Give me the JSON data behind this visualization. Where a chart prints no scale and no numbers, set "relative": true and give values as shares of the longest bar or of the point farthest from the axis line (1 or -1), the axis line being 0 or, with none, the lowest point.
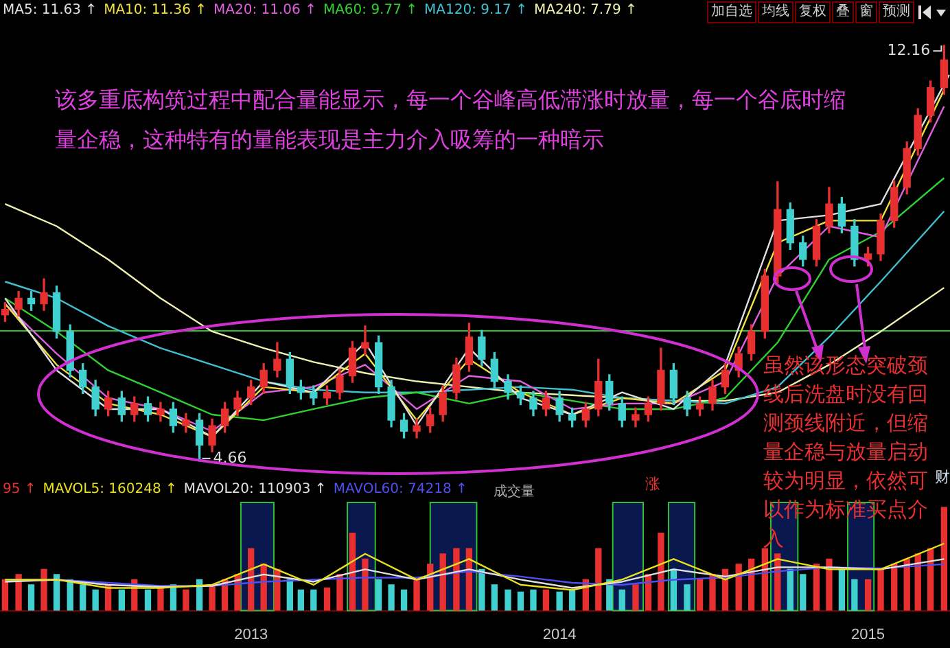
{
  "chart_data": [
    {
      "type": "candlestick",
      "x": [
        "2012-03-16",
        "2012-04-01",
        "2012-04-16",
        "2012-05-01",
        "2012-05-16",
        "2012-06-01",
        "2012-06-16",
        "2012-07-01",
        "2012-07-16",
        "2012-08-01",
        "2012-08-16",
        "2012-09-01",
        "2012-09-16",
        "2012-10-01",
        "2012-10-16",
        "2012-11-01",
        "2012-11-16",
        "2012-12-01",
        "2012-12-16",
        "2013-01-01",
        "2013-01-16",
        "2013-02-01",
        "2013-02-16",
        "2013-03-01",
        "2013-03-16",
        "2013-04-01",
        "2013-04-16",
        "2013-05-01",
        "2013-05-16",
        "2013-06-01",
        "2013-06-16",
        "2013-07-01",
        "2013-07-16",
        "2013-08-01",
        "2013-08-16",
        "2013-09-01",
        "2013-09-16",
        "2013-10-01",
        "2013-10-16",
        "2013-11-01",
        "2013-11-16",
        "2013-12-01",
        "2013-12-16",
        "2014-01-01",
        "2014-01-16",
        "2014-02-01",
        "2014-02-16",
        "2014-03-01",
        "2014-03-16",
        "2014-04-01",
        "2014-04-16",
        "2014-05-01",
        "2014-05-16",
        "2014-06-01",
        "2014-06-16",
        "2014-07-01",
        "2014-07-16",
        "2014-08-01",
        "2014-08-16",
        "2014-09-01",
        "2014-09-16",
        "2014-10-01",
        "2014-10-16",
        "2014-11-01",
        "2014-11-16",
        "2014-12-01",
        "2014-12-16",
        "2015-01-01",
        "2015-01-16",
        "2015-02-01",
        "2015-02-16",
        "2015-03-01",
        "2015-03-16",
        "2015-04-01"
      ],
      "ohlc": [
        [
          7.3,
          7.52,
          7.18,
          7.4
        ],
        [
          7.4,
          7.72,
          7.28,
          7.6
        ],
        [
          7.6,
          7.72,
          7.38,
          7.5
        ],
        [
          7.5,
          7.95,
          7.38,
          7.7
        ],
        [
          7.7,
          7.82,
          6.88,
          7.0
        ],
        [
          7.0,
          7.12,
          6.18,
          6.3
        ],
        [
          6.3,
          6.42,
          5.88,
          6.0
        ],
        [
          6.0,
          6.12,
          5.48,
          5.6
        ],
        [
          5.6,
          5.92,
          5.48,
          5.8
        ],
        [
          5.8,
          5.92,
          5.38,
          5.5
        ],
        [
          5.5,
          5.82,
          5.38,
          5.7
        ],
        [
          5.7,
          5.82,
          5.38,
          5.5
        ],
        [
          5.5,
          5.72,
          5.38,
          5.6
        ],
        [
          5.6,
          5.72,
          5.18,
          5.3
        ],
        [
          5.3,
          5.52,
          5.18,
          5.4
        ],
        [
          5.4,
          5.52,
          4.66,
          4.95
        ],
        [
          4.95,
          5.42,
          4.83,
          5.3
        ],
        [
          5.3,
          5.72,
          5.18,
          5.6
        ],
        [
          5.6,
          5.92,
          5.48,
          5.8
        ],
        [
          5.8,
          6.12,
          5.68,
          6.0
        ],
        [
          6.0,
          6.42,
          5.88,
          6.3
        ],
        [
          6.3,
          6.8,
          6.18,
          6.5
        ],
        [
          6.5,
          6.62,
          5.88,
          6.0
        ],
        [
          6.0,
          6.12,
          5.78,
          5.9
        ],
        [
          5.9,
          6.02,
          5.68,
          5.8
        ],
        [
          5.8,
          6.02,
          5.68,
          5.9
        ],
        [
          5.9,
          6.32,
          5.78,
          6.2
        ],
        [
          6.2,
          6.82,
          6.08,
          6.7
        ],
        [
          6.7,
          7.1,
          6.58,
          6.8
        ],
        [
          6.8,
          6.92,
          5.88,
          6.0
        ],
        [
          6.0,
          6.12,
          5.28,
          5.4
        ],
        [
          5.4,
          5.52,
          5.08,
          5.2
        ],
        [
          5.2,
          5.42,
          5.08,
          5.3
        ],
        [
          5.3,
          5.62,
          5.18,
          5.5
        ],
        [
          5.5,
          6.02,
          5.38,
          5.9
        ],
        [
          5.9,
          6.52,
          5.78,
          6.4
        ],
        [
          6.4,
          7.15,
          6.28,
          6.9
        ],
        [
          6.9,
          7.02,
          6.38,
          6.5
        ],
        [
          6.5,
          6.62,
          5.98,
          6.1
        ],
        [
          6.1,
          6.22,
          5.78,
          5.9
        ],
        [
          5.9,
          6.02,
          5.68,
          5.8
        ],
        [
          5.8,
          5.92,
          5.48,
          5.6
        ],
        [
          5.6,
          5.92,
          5.48,
          5.8
        ],
        [
          5.8,
          5.92,
          5.38,
          5.5
        ],
        [
          5.5,
          5.62,
          5.28,
          5.4
        ],
        [
          5.4,
          5.72,
          5.28,
          5.6
        ],
        [
          5.6,
          6.5,
          5.48,
          6.1
        ],
        [
          6.1,
          6.22,
          5.58,
          5.7
        ],
        [
          5.7,
          5.82,
          5.28,
          5.4
        ],
        [
          5.4,
          5.62,
          5.28,
          5.5
        ],
        [
          5.5,
          5.82,
          5.38,
          5.7
        ],
        [
          5.7,
          6.7,
          5.58,
          6.3
        ],
        [
          6.3,
          6.42,
          5.68,
          5.8
        ],
        [
          5.8,
          5.92,
          5.48,
          5.6
        ],
        [
          5.6,
          5.82,
          5.48,
          5.7
        ],
        [
          5.7,
          6.12,
          5.58,
          6.0
        ],
        [
          6.0,
          6.42,
          5.88,
          6.3
        ],
        [
          6.3,
          6.72,
          6.18,
          6.6
        ],
        [
          6.6,
          7.12,
          6.48,
          7.0
        ],
        [
          7.0,
          8.12,
          6.88,
          8.0
        ],
        [
          8.0,
          9.7,
          7.88,
          9.2
        ],
        [
          9.2,
          9.32,
          8.48,
          8.6
        ],
        [
          8.6,
          8.72,
          8.18,
          8.3
        ],
        [
          8.3,
          9.02,
          8.18,
          8.9
        ],
        [
          8.9,
          9.6,
          8.78,
          9.3
        ],
        [
          9.3,
          9.42,
          8.78,
          8.9
        ],
        [
          8.9,
          9.02,
          8.18,
          8.3
        ],
        [
          8.3,
          8.52,
          8.18,
          8.4
        ],
        [
          8.4,
          9.12,
          8.28,
          9.0
        ],
        [
          9.0,
          9.72,
          8.88,
          9.6
        ],
        [
          9.6,
          10.42,
          9.48,
          10.3
        ],
        [
          10.3,
          11.02,
          10.18,
          10.9
        ],
        [
          10.9,
          11.52,
          10.78,
          11.4
        ],
        [
          11.4,
          12.16,
          11.28,
          11.9
        ]
      ],
      "colors": [
        "#e83030",
        "#e83030",
        "#40d0d0",
        "#e83030",
        "#40d0d0",
        "#40d0d0",
        "#40d0d0",
        "#40d0d0",
        "#e83030",
        "#40d0d0",
        "#e83030",
        "#40d0d0",
        "#e83030",
        "#40d0d0",
        "#e83030",
        "#40d0d0",
        "#e83030",
        "#e83030",
        "#e83030",
        "#e83030",
        "#e83030",
        "#e83030",
        "#40d0d0",
        "#40d0d0",
        "#40d0d0",
        "#e83030",
        "#e83030",
        "#e83030",
        "#e83030",
        "#40d0d0",
        "#40d0d0",
        "#40d0d0",
        "#e83030",
        "#e83030",
        "#e83030",
        "#e83030",
        "#e83030",
        "#40d0d0",
        "#40d0d0",
        "#40d0d0",
        "#40d0d0",
        "#40d0d0",
        "#e83030",
        "#40d0d0",
        "#40d0d0",
        "#e83030",
        "#e83030",
        "#40d0d0",
        "#40d0d0",
        "#e83030",
        "#e83030",
        "#e83030",
        "#40d0d0",
        "#40d0d0",
        "#e83030",
        "#e83030",
        "#e83030",
        "#e83030",
        "#e83030",
        "#e83030",
        "#e83030",
        "#40d0d0",
        "#40d0d0",
        "#e83030",
        "#e83030",
        "#40d0d0",
        "#40d0d0",
        "#e83030",
        "#e83030",
        "#e83030",
        "#e83030",
        "#e83030",
        "#e83030",
        "#e83030"
      ],
      "series": [
        {
          "name": "MA5: 11.63 ↑",
          "type": "line",
          "color": "#e0e0e0",
          "x": [
            "2012-03-16",
            "2012-05-16",
            "2012-07-16",
            "2012-09-16",
            "2012-11-16",
            "2013-01-16",
            "2013-03-16",
            "2013-05-16",
            "2013-07-16",
            "2013-09-16",
            "2013-11-16",
            "2014-01-16",
            "2014-03-16",
            "2014-05-16",
            "2014-07-16",
            "2014-09-16",
            "2014-11-16",
            "2015-01-16",
            "2015-04-07"
          ],
          "values": [
            7.6,
            6.3,
            5.6,
            5.6,
            5.1,
            6.1,
            5.9,
            6.8,
            5.3,
            6.7,
            5.8,
            5.5,
            5.9,
            5.6,
            6.4,
            9.0,
            9.1,
            9.3,
            11.63
          ]
        },
        {
          "name": "MA10: 11.36 ↑",
          "type": "line",
          "color": "#f0e040",
          "x": [
            "2012-03-16",
            "2012-05-16",
            "2012-07-16",
            "2012-09-16",
            "2012-11-16",
            "2013-01-16",
            "2013-03-16",
            "2013-05-16",
            "2013-07-16",
            "2013-09-16",
            "2013-11-16",
            "2014-01-16",
            "2014-03-16",
            "2014-05-16",
            "2014-07-16",
            "2014-09-16",
            "2014-11-16",
            "2015-01-16",
            "2015-04-01"
          ],
          "values": [
            7.5,
            6.4,
            5.7,
            5.5,
            5.1,
            6.0,
            5.9,
            6.6,
            5.4,
            6.5,
            5.9,
            5.5,
            5.8,
            5.7,
            6.3,
            8.6,
            9.0,
            9.0,
            11.36
          ]
        },
        {
          "name": "MA20: 11.06 ↑",
          "type": "line",
          "color": "#e060e0",
          "x": [
            "2012-03-16",
            "2012-05-16",
            "2012-07-16",
            "2012-09-16",
            "2012-11-16",
            "2013-01-16",
            "2013-03-16",
            "2013-05-16",
            "2013-07-16",
            "2013-09-16",
            "2013-11-16",
            "2014-01-16",
            "2014-03-16",
            "2014-05-16",
            "2014-07-16",
            "2014-09-16",
            "2014-11-16",
            "2015-01-16",
            "2015-04-01"
          ],
          "values": [
            7.5,
            6.6,
            5.8,
            5.6,
            5.2,
            5.9,
            6.0,
            6.4,
            5.6,
            6.2,
            6.1,
            5.6,
            5.7,
            5.7,
            6.1,
            8.0,
            8.9,
            8.7,
            11.06
          ]
        },
        {
          "name": "MA60: 9.77 ↑",
          "type": "line",
          "color": "#30d030",
          "x": [
            "2012-03-16",
            "2012-05-16",
            "2012-07-16",
            "2012-09-16",
            "2012-11-16",
            "2013-01-16",
            "2013-03-16",
            "2013-05-16",
            "2013-07-16",
            "2013-09-16",
            "2013-11-16",
            "2014-01-16",
            "2014-03-16",
            "2014-05-16",
            "2014-07-16",
            "2014-09-16",
            "2014-11-16",
            "2015-01-16",
            "2015-04-01"
          ],
          "values": [
            7.6,
            7.0,
            6.3,
            5.9,
            5.5,
            5.4,
            5.6,
            5.8,
            5.9,
            5.7,
            5.9,
            5.75,
            5.6,
            5.6,
            5.8,
            6.8,
            8.3,
            8.8,
            9.77
          ]
        },
        {
          "name": "MA120: 9.17 ↑",
          "type": "line",
          "color": "#40c0d0",
          "x": [
            "2012-03-16",
            "2012-05-16",
            "2012-07-16",
            "2012-09-16",
            "2012-11-16",
            "2013-01-16",
            "2013-03-16",
            "2013-05-16",
            "2013-07-16",
            "2013-09-16",
            "2013-11-16",
            "2014-01-16",
            "2014-03-16",
            "2014-05-16",
            "2014-07-16",
            "2014-09-16",
            "2014-11-16",
            "2015-01-16",
            "2015-04-01"
          ],
          "values": [
            7.9,
            7.6,
            7.1,
            6.7,
            6.4,
            6.1,
            5.95,
            5.9,
            5.9,
            5.95,
            6.0,
            5.95,
            5.8,
            5.75,
            5.7,
            6.0,
            6.9,
            7.9,
            9.17
          ]
        },
        {
          "name": "MA240: 7.79 ↑",
          "type": "line",
          "color": "#f0f0b0",
          "x": [
            "2012-03-16",
            "2012-05-16",
            "2012-07-16",
            "2012-09-16",
            "2012-11-16",
            "2013-01-16",
            "2013-03-16",
            "2013-05-16",
            "2013-07-16",
            "2013-09-16",
            "2013-11-16",
            "2014-01-16",
            "2014-03-16",
            "2014-05-16",
            "2014-07-16",
            "2014-09-16",
            "2014-11-16",
            "2015-01-16",
            "2015-04-01"
          ],
          "values": [
            9.3,
            8.9,
            8.3,
            7.6,
            7.0,
            6.7,
            6.45,
            6.25,
            6.1,
            6.0,
            5.9,
            5.85,
            5.8,
            5.75,
            5.75,
            5.9,
            6.4,
            7.0,
            7.79
          ]
        }
      ],
      "ref_lines": [
        {
          "axis": "y",
          "value": 7.01,
          "color": "#30c030"
        }
      ],
      "xlim": [
        "2012-03-10",
        "2015-04-08"
      ],
      "tick_labels": false,
      "legend": "top left",
      "marker": "none",
      "annotations": [
        "该多重底构筑过程中配合量能显示，每一个谷峰高低滞涨时放量，每一个谷底时缩量企稳，这种特有的量能表现是主力介入吸筹的一种暗示",
        "虽然该形态突破颈线后洗盘时没有回测颈线附近，但缩量企稳与放量启动较为明显，依然可以作为标准买点介入",
        "加自选",
        "均线",
        "复权",
        "叠",
        "窗",
        "预测",
        {
          "text": "12.16",
          "x": "2015-04-01",
          "y": 12.16
        },
        {
          "text": "4.66",
          "x": "2012-11-01",
          "y": 4.66
        }
      ]
    },
    {
      "type": "bar",
      "relative": true,
      "x": [
        "2012-03-16",
        "2012-04-01",
        "2012-04-16",
        "2012-05-01",
        "2012-05-16",
        "2012-06-01",
        "2012-06-16",
        "2012-07-01",
        "2012-07-16",
        "2012-08-01",
        "2012-08-16",
        "2012-09-01",
        "2012-09-16",
        "2012-10-01",
        "2012-10-16",
        "2012-11-01",
        "2012-11-16",
        "2012-12-01",
        "2012-12-16",
        "2013-01-01",
        "2013-01-16",
        "2013-02-01",
        "2013-02-16",
        "2013-03-01",
        "2013-03-16",
        "2013-04-01",
        "2013-04-16",
        "2013-05-01",
        "2013-05-16",
        "2013-06-01",
        "2013-06-16",
        "2013-07-01",
        "2013-07-16",
        "2013-08-01",
        "2013-08-16",
        "2013-09-01",
        "2013-09-16",
        "2013-10-01",
        "2013-10-16",
        "2013-11-01",
        "2013-11-16",
        "2013-12-01",
        "2013-12-16",
        "2014-01-01",
        "2014-01-16",
        "2014-02-01",
        "2014-02-16",
        "2014-03-01",
        "2014-03-16",
        "2014-04-01",
        "2014-04-16",
        "2014-05-01",
        "2014-05-16",
        "2014-06-01",
        "2014-06-16",
        "2014-07-01",
        "2014-07-16",
        "2014-08-01",
        "2014-08-16",
        "2014-09-01",
        "2014-09-16",
        "2014-10-01",
        "2014-10-16",
        "2014-11-01",
        "2014-11-16",
        "2014-12-01",
        "2014-12-16",
        "2015-01-01",
        "2015-01-16",
        "2015-02-01",
        "2015-02-16",
        "2015-03-01",
        "2015-03-16",
        "2015-04-01"
      ],
      "series": [
        {
          "type": "bar",
          "colors": [
            "#e83030",
            "#e83030",
            "#40d0d0",
            "#e83030",
            "#40d0d0",
            "#40d0d0",
            "#40d0d0",
            "#40d0d0",
            "#e83030",
            "#40d0d0",
            "#e83030",
            "#40d0d0",
            "#e83030",
            "#40d0d0",
            "#e83030",
            "#40d0d0",
            "#e83030",
            "#e83030",
            "#e83030",
            "#e83030",
            "#e83030",
            "#e83030",
            "#40d0d0",
            "#40d0d0",
            "#40d0d0",
            "#e83030",
            "#e83030",
            "#e83030",
            "#e83030",
            "#40d0d0",
            "#40d0d0",
            "#40d0d0",
            "#e83030",
            "#e83030",
            "#e83030",
            "#e83030",
            "#e83030",
            "#40d0d0",
            "#40d0d0",
            "#40d0d0",
            "#40d0d0",
            "#40d0d0",
            "#e83030",
            "#40d0d0",
            "#40d0d0",
            "#e83030",
            "#e83030",
            "#40d0d0",
            "#40d0d0",
            "#e83030",
            "#e83030",
            "#e83030",
            "#40d0d0",
            "#40d0d0",
            "#e83030",
            "#e83030",
            "#e83030",
            "#e83030",
            "#e83030",
            "#e83030",
            "#e83030",
            "#40d0d0",
            "#40d0d0",
            "#e83030",
            "#e83030",
            "#40d0d0",
            "#40d0d0",
            "#e83030",
            "#e83030",
            "#e83030",
            "#e83030",
            "#e83030",
            "#e83030",
            "#e83030"
          ],
          "values": [
            0.3,
            0.35,
            0.25,
            0.4,
            0.35,
            0.3,
            0.25,
            0.2,
            0.25,
            0.2,
            0.3,
            0.2,
            0.22,
            0.25,
            0.2,
            0.3,
            0.25,
            0.3,
            0.35,
            0.6,
            0.45,
            0.4,
            0.3,
            0.2,
            0.2,
            0.22,
            0.35,
            0.75,
            0.5,
            0.3,
            0.25,
            0.2,
            0.3,
            0.45,
            0.55,
            0.6,
            0.6,
            0.4,
            0.25,
            0.2,
            0.18,
            0.2,
            0.2,
            0.18,
            0.2,
            0.3,
            0.6,
            0.3,
            0.2,
            0.25,
            0.35,
            0.75,
            0.4,
            0.25,
            0.3,
            0.35,
            0.4,
            0.45,
            0.5,
            0.6,
            0.55,
            0.4,
            0.35,
            0.45,
            0.5,
            0.4,
            0.3,
            0.3,
            0.4,
            0.45,
            0.5,
            0.55,
            0.6,
            1
          ]
        },
        {
          "name": "MAVOL5: 160248 ↑",
          "type": "line",
          "color": "#e8e020",
          "x": [
            "2012-03-16",
            "2012-05-16",
            "2012-07-16",
            "2012-09-16",
            "2012-11-16",
            "2013-01-16",
            "2013-03-16",
            "2013-05-16",
            "2013-07-16",
            "2013-09-16",
            "2013-11-16",
            "2014-01-16",
            "2014-03-16",
            "2014-05-16",
            "2014-07-16",
            "2014-09-16",
            "2014-11-16",
            "2015-01-16",
            "2015-04-01"
          ],
          "values": [
            0.3,
            0.3,
            0.22,
            0.22,
            0.25,
            0.45,
            0.25,
            0.55,
            0.3,
            0.5,
            0.25,
            0.2,
            0.3,
            0.5,
            0.3,
            0.5,
            0.4,
            0.4,
            0.65
          ]
        },
        {
          "name": "MAVOL20: 110903 ↑",
          "type": "line",
          "color": "#e0e0e0",
          "x": [
            "2012-03-16",
            "2012-05-16",
            "2012-07-16",
            "2012-09-16",
            "2012-11-16",
            "2013-01-16",
            "2013-03-16",
            "2013-05-16",
            "2013-07-16",
            "2013-09-16",
            "2013-11-16",
            "2014-01-16",
            "2014-03-16",
            "2014-05-16",
            "2014-07-16",
            "2014-09-16",
            "2014-11-16",
            "2015-01-16",
            "2015-04-01"
          ],
          "values": [
            0.28,
            0.3,
            0.25,
            0.23,
            0.24,
            0.35,
            0.28,
            0.4,
            0.3,
            0.4,
            0.3,
            0.22,
            0.28,
            0.4,
            0.33,
            0.42,
            0.42,
            0.4,
            0.5
          ]
        },
        {
          "name": "MAVOL60: 74218 ↑",
          "type": "line",
          "color": "#5050f0",
          "x": [
            "2012-03-16",
            "2012-05-16",
            "2012-07-16",
            "2012-09-16",
            "2012-11-16",
            "2013-01-16",
            "2013-03-16",
            "2013-05-16",
            "2013-07-16",
            "2013-09-16",
            "2013-11-16",
            "2014-01-16",
            "2014-03-16",
            "2014-05-16",
            "2014-07-16",
            "2014-09-16",
            "2014-11-16",
            "2015-01-16",
            "2015-04-01"
          ],
          "values": [
            0.3,
            0.3,
            0.27,
            0.24,
            0.24,
            0.28,
            0.3,
            0.32,
            0.32,
            0.38,
            0.33,
            0.27,
            0.25,
            0.3,
            0.32,
            0.38,
            0.42,
            0.41,
            0.45
          ]
        }
      ],
      "bands": [
        {
          "axis": "x",
          "from": "2012-12-20",
          "to": "2013-01-28",
          "color": "#0a1850"
        },
        {
          "axis": "x",
          "from": "2013-04-25",
          "to": "2013-05-28",
          "color": "#0a1850"
        },
        {
          "axis": "x",
          "from": "2013-08-01",
          "to": "2013-09-25",
          "color": "#0a1850"
        },
        {
          "axis": "x",
          "from": "2014-03-05",
          "to": "2014-04-10",
          "color": "#0a1850"
        },
        {
          "axis": "x",
          "from": "2014-05-10",
          "to": "2014-06-10",
          "color": "#0a1850"
        },
        {
          "axis": "x",
          "from": "2014-09-08",
          "to": "2014-10-10",
          "color": "#0a1850"
        },
        {
          "axis": "x",
          "from": "2014-12-08",
          "to": "2015-01-08",
          "color": "#0a1850"
        }
      ],
      "xlim": [
        "2012-03-10",
        "2015-04-08"
      ],
      "xticks": [
        "2013",
        "2014",
        "2015"
      ],
      "tick_labels": "x",
      "legend": "top left",
      "marker": "none",
      "annotations": [
        "95 ↑",
        "成交量",
        "涨",
        "财"
      ]
    }
  ]
}
